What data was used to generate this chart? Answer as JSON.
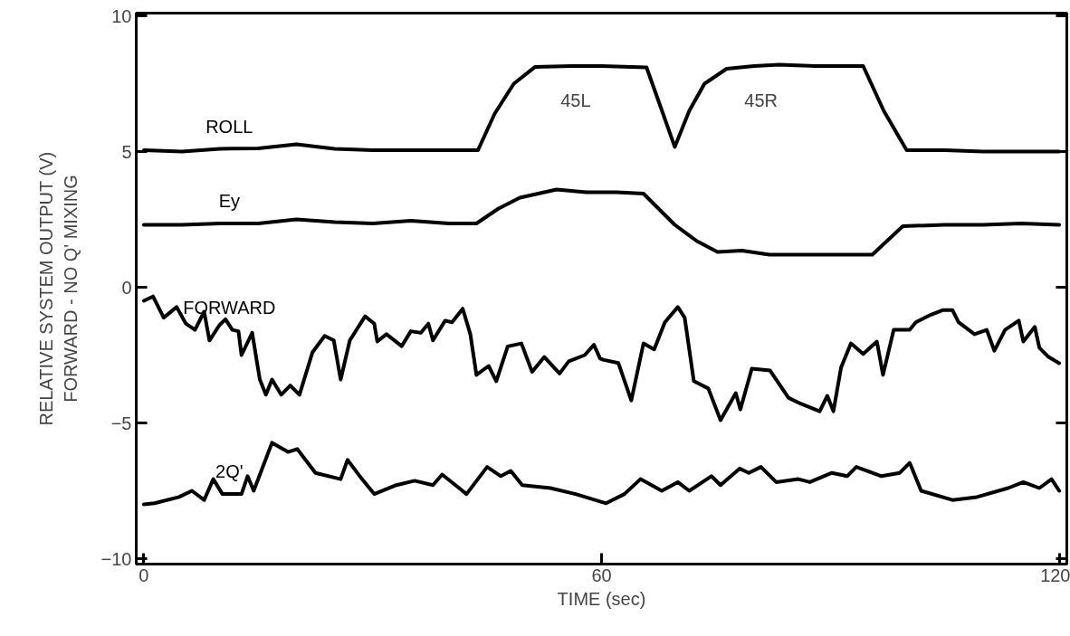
{
  "chart_data": {
    "type": "line",
    "xlabel": "TIME (sec)",
    "ylabel": "RELATIVE SYSTEM OUTPUT (V)\nFORWARD - NO Q' MIXING",
    "xlim": [
      -1,
      121
    ],
    "ylim": [
      -10.2,
      10.1
    ],
    "xticks": [
      0,
      60,
      120
    ],
    "yticks": [
      -10,
      -5,
      0,
      5,
      10
    ],
    "grid": false,
    "marker": "none",
    "line_style": "solid",
    "series": [
      {
        "name": "ROLL",
        "color": "#000000",
        "x": [
          0,
          5,
          10,
          15,
          20,
          25,
          30,
          35,
          40,
          43.8,
          46,
          48.5,
          51.3,
          56,
          60,
          65.9,
          67.8,
          69.6,
          71.5,
          73.5,
          76.4,
          80,
          83.3,
          88,
          94.3,
          97,
          100,
          105,
          110,
          115,
          120
        ],
        "values": [
          5.05,
          5.0,
          5.1,
          5.12,
          5.27,
          5.1,
          5.05,
          5.05,
          5.05,
          5.05,
          6.4,
          7.5,
          8.12,
          8.15,
          8.15,
          8.1,
          6.6,
          5.17,
          6.5,
          7.5,
          8.05,
          8.15,
          8.2,
          8.15,
          8.15,
          6.5,
          5.05,
          5.05,
          5.0,
          5.0,
          5.0
        ]
      },
      {
        "name": "Ey",
        "color": "#000000",
        "x": [
          0,
          5,
          10,
          15,
          20,
          25,
          30,
          35,
          40,
          43.6,
          46.5,
          49.3,
          54.1,
          58,
          62,
          65.5,
          69.6,
          72.5,
          75.2,
          78.4,
          82,
          88,
          95.5,
          99.5,
          105,
          110,
          115,
          120
        ],
        "values": [
          2.3,
          2.3,
          2.35,
          2.35,
          2.5,
          2.4,
          2.35,
          2.45,
          2.35,
          2.35,
          2.9,
          3.3,
          3.6,
          3.5,
          3.5,
          3.45,
          2.3,
          1.7,
          1.3,
          1.35,
          1.2,
          1.2,
          1.2,
          2.25,
          2.3,
          2.3,
          2.35,
          2.3
        ]
      },
      {
        "name": "FORWARD",
        "color": "#000000",
        "x": [
          0,
          1.2,
          2.6,
          4.3,
          5.5,
          6.7,
          7.9,
          8.6,
          9.9,
          10.7,
          11.6,
          12.4,
          12.8,
          14.2,
          15.2,
          16.0,
          16.8,
          18.0,
          19.2,
          20.4,
          22.1,
          23.7,
          24.9,
          25.8,
          27.0,
          29.0,
          30.2,
          30.6,
          31.8,
          33.8,
          35.0,
          36.3,
          37.3,
          37.9,
          39.5,
          40.4,
          41.8,
          42.8,
          43.6,
          45.2,
          46.2,
          47.7,
          49.5,
          50.9,
          52.5,
          54.5,
          55.7,
          57.8,
          59.0,
          59.8,
          60.2,
          62.2,
          63.9,
          65.5,
          66.9,
          68.3,
          70.0,
          70.9,
          72.1,
          74.0,
          75.6,
          77.6,
          78.2,
          79.7,
          82.1,
          83.3,
          84.5,
          86.1,
          88.6,
          89.6,
          90.4,
          91.4,
          92.7,
          94.3,
          96.1,
          96.9,
          98.3,
          100.4,
          101.2,
          103.2,
          104.8,
          106.0,
          106.8,
          108.9,
          110.5,
          111.5,
          112.9,
          114.7,
          115.3,
          116.8,
          117.4,
          118.6,
          120
        ],
        "values": [
          -0.5,
          -0.34,
          -1.12,
          -0.73,
          -1.34,
          -1.57,
          -0.9,
          -1.96,
          -1.4,
          -1.18,
          -1.57,
          -1.62,
          -2.5,
          -1.68,
          -3.4,
          -3.96,
          -3.4,
          -3.96,
          -3.62,
          -3.96,
          -2.4,
          -1.79,
          -1.96,
          -3.4,
          -1.96,
          -1.07,
          -1.34,
          -2.0,
          -1.73,
          -2.17,
          -1.62,
          -1.68,
          -1.34,
          -1.96,
          -1.23,
          -1.29,
          -0.79,
          -1.73,
          -3.23,
          -2.9,
          -3.46,
          -2.18,
          -2.07,
          -3.12,
          -2.57,
          -3.18,
          -2.73,
          -2.5,
          -2.12,
          -2.62,
          -2.67,
          -2.79,
          -4.17,
          -2.07,
          -2.29,
          -1.29,
          -0.73,
          -1.12,
          -3.46,
          -3.73,
          -4.9,
          -3.9,
          -4.5,
          -3.0,
          -3.07,
          -3.57,
          -4.07,
          -4.29,
          -4.57,
          -4.0,
          -4.57,
          -2.96,
          -2.07,
          -2.46,
          -2.0,
          -3.23,
          -1.57,
          -1.57,
          -1.29,
          -1.01,
          -0.84,
          -0.84,
          -1.29,
          -1.73,
          -1.57,
          -2.34,
          -1.57,
          -1.23,
          -2.0,
          -1.46,
          -2.23,
          -2.57,
          -2.8
        ]
      },
      {
        "name": "2Q'",
        "color": "#000000",
        "x": [
          0,
          1.4,
          4.6,
          6.3,
          7.9,
          9.1,
          10.3,
          12.8,
          13.6,
          14.4,
          16.8,
          18.9,
          20.1,
          22.5,
          25.8,
          26.7,
          28.6,
          30.2,
          33.1,
          35.5,
          37.9,
          39.1,
          42.3,
          45.0,
          46.8,
          48.1,
          49.6,
          53.3,
          56.6,
          60.6,
          63.0,
          65.1,
          67.9,
          70.0,
          71.5,
          74.4,
          75.6,
          78.1,
          79.3,
          80.9,
          82.9,
          85.8,
          87.3,
          90.2,
          92.2,
          93.4,
          96.7,
          99.1,
          100.4,
          101.9,
          106.0,
          109.2,
          113.3,
          115.3,
          117.4,
          119.0,
          120
        ],
        "values": [
          -8.0,
          -7.96,
          -7.73,
          -7.5,
          -7.84,
          -7.07,
          -7.62,
          -7.62,
          -6.96,
          -7.5,
          -5.73,
          -6.07,
          -5.96,
          -6.84,
          -7.07,
          -6.36,
          -7.07,
          -7.62,
          -7.29,
          -7.13,
          -7.29,
          -6.9,
          -7.62,
          -6.62,
          -6.96,
          -6.77,
          -7.29,
          -7.4,
          -7.62,
          -7.96,
          -7.62,
          -7.07,
          -7.5,
          -7.18,
          -7.5,
          -6.96,
          -7.29,
          -6.68,
          -6.84,
          -6.62,
          -7.18,
          -7.07,
          -7.18,
          -6.84,
          -6.96,
          -6.62,
          -6.96,
          -6.84,
          -6.47,
          -7.5,
          -7.84,
          -7.73,
          -7.4,
          -7.18,
          -7.4,
          -7.07,
          -7.5
        ]
      }
    ],
    "annotations": [
      {
        "text": "45L",
        "x": 56.6,
        "y": 8.15
      },
      {
        "text": "45R",
        "x": 80.9,
        "y": 8.15
      }
    ]
  }
}
